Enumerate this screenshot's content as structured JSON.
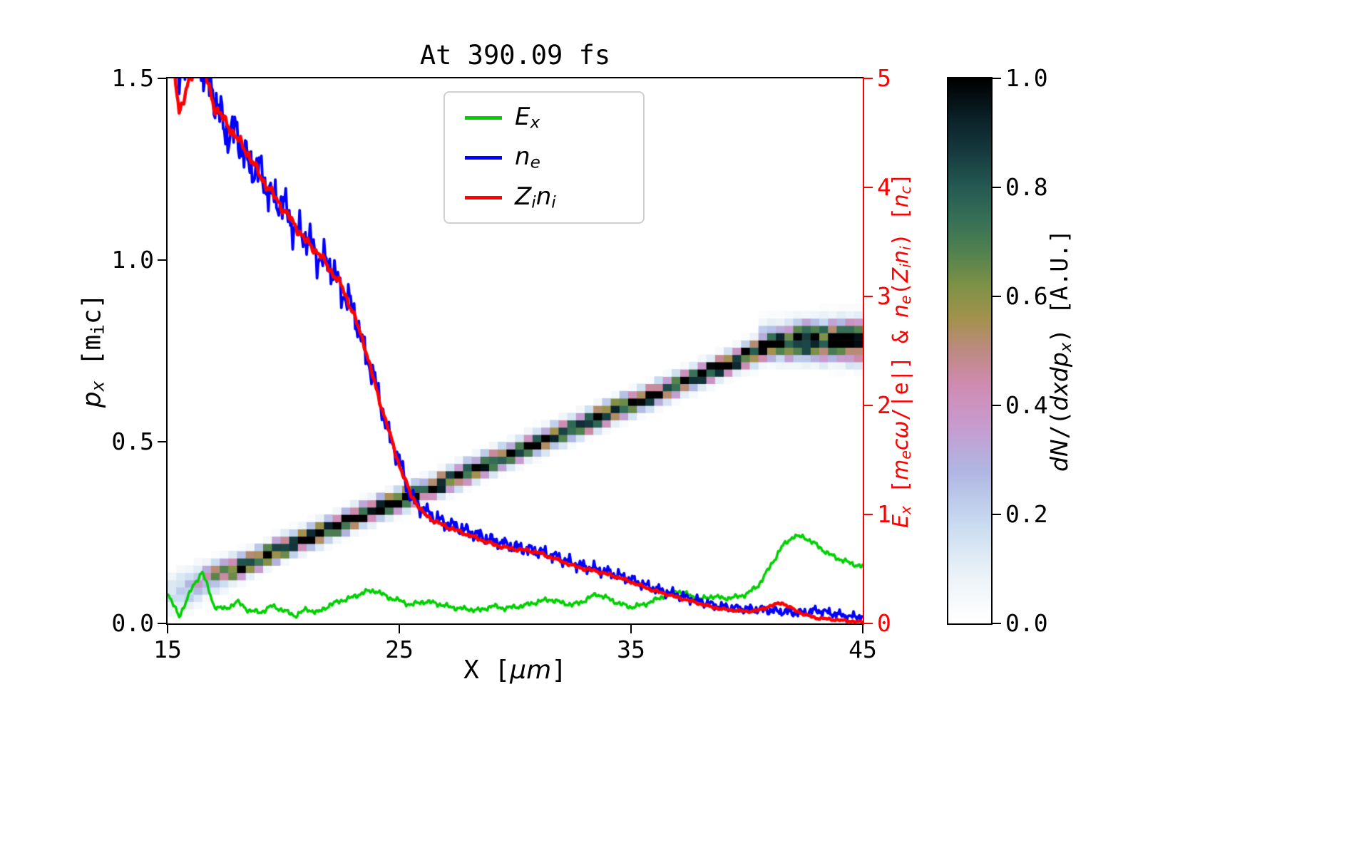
{
  "chart_data": {
    "type": "line+heatmap",
    "title": "At 390.09 fs",
    "x_axis": {
      "label": "X [μm]",
      "lim": [
        15,
        45
      ],
      "ticks": [
        15,
        25,
        35,
        45
      ],
      "tick_labels": [
        "15",
        "25",
        "35",
        "45"
      ]
    },
    "left_axis": {
      "label": "p_x [m_i c]",
      "lim": [
        0,
        1.5
      ],
      "ticks": [
        0,
        0.5,
        1.0,
        1.5
      ],
      "tick_labels": [
        "0.0",
        "0.5",
        "1.0",
        "1.5"
      ]
    },
    "right_axis": {
      "label": "E_x [m_e cω/|e|] & n_e(Z_i n_i) [n_c]",
      "lim": [
        0,
        5
      ],
      "ticks": [
        0,
        1,
        2,
        3,
        4,
        5
      ],
      "tick_labels": [
        "0",
        "1",
        "2",
        "3",
        "4",
        "5"
      ],
      "color": "#ff0000"
    },
    "grid": false,
    "legend_position": "upper center-left",
    "series": [
      {
        "name": "E_x",
        "axis": "right",
        "color": "#00d000",
        "lw": 3.5,
        "x0": 15,
        "dx": 0.5,
        "y": [
          0.28,
          0.06,
          0.3,
          0.48,
          0.16,
          0.13,
          0.2,
          0.12,
          0.1,
          0.16,
          0.12,
          0.07,
          0.13,
          0.1,
          0.17,
          0.21,
          0.24,
          0.29,
          0.3,
          0.24,
          0.21,
          0.17,
          0.2,
          0.19,
          0.16,
          0.14,
          0.13,
          0.12,
          0.16,
          0.14,
          0.15,
          0.17,
          0.2,
          0.22,
          0.19,
          0.17,
          0.21,
          0.27,
          0.23,
          0.18,
          0.15,
          0.17,
          0.21,
          0.26,
          0.3,
          0.26,
          0.22,
          0.25,
          0.23,
          0.24,
          0.27,
          0.35,
          0.52,
          0.7,
          0.8,
          0.79,
          0.72,
          0.64,
          0.59,
          0.55,
          0.52
        ],
        "noise": {
          "amp0": 0.018,
          "ampk": 0.0,
          "freqs": [
            9.1,
            23.7,
            41.3
          ],
          "phases": [
            0.3,
            1.7,
            3.1
          ]
        }
      },
      {
        "name": "n_e",
        "axis": "right",
        "color": "#0000ff",
        "lw": 3.8,
        "x0": 15,
        "dx": 0.5,
        "y": [
          5.7,
          5.0,
          5.3,
          5.1,
          4.85,
          4.5,
          4.5,
          4.2,
          4.15,
          3.9,
          3.85,
          3.6,
          3.55,
          3.35,
          3.3,
          3.05,
          2.9,
          2.5,
          2.2,
          1.75,
          1.5,
          1.15,
          1.05,
          0.97,
          0.92,
          0.88,
          0.84,
          0.8,
          0.76,
          0.73,
          0.7,
          0.68,
          0.66,
          0.63,
          0.59,
          0.55,
          0.52,
          0.5,
          0.47,
          0.44,
          0.4,
          0.36,
          0.32,
          0.29,
          0.26,
          0.23,
          0.2,
          0.17,
          0.15,
          0.14,
          0.13,
          0.13,
          0.12,
          0.11,
          0.1,
          0.1,
          0.12,
          0.1,
          0.08,
          0.06,
          0.07
        ],
        "noise": {
          "amp0": 0.03,
          "ampk": 0.03,
          "freqs": [
            11.3,
            29.7,
            53.9
          ],
          "phases": [
            0.7,
            2.1,
            4.2
          ]
        }
      },
      {
        "name": "Z_i n_i",
        "axis": "right",
        "color": "#ff0000",
        "lw": 4.5,
        "x0": 15,
        "dx": 0.5,
        "y": [
          5.6,
          4.7,
          5.0,
          5.15,
          4.75,
          4.6,
          4.45,
          4.3,
          4.1,
          3.95,
          3.8,
          3.65,
          3.5,
          3.4,
          3.25,
          3.1,
          2.85,
          2.55,
          2.15,
          1.8,
          1.45,
          1.18,
          1.02,
          0.94,
          0.89,
          0.85,
          0.81,
          0.77,
          0.73,
          0.7,
          0.68,
          0.67,
          0.65,
          0.61,
          0.57,
          0.53,
          0.5,
          0.48,
          0.45,
          0.42,
          0.38,
          0.34,
          0.3,
          0.27,
          0.24,
          0.21,
          0.18,
          0.15,
          0.13,
          0.12,
          0.11,
          0.12,
          0.16,
          0.19,
          0.13,
          0.08,
          0.05,
          0.04,
          0.03,
          0.02,
          0.01
        ],
        "noise": {
          "amp0": 0.008,
          "ampk": 0.007,
          "freqs": [
            8.7,
            19.3,
            37.1
          ],
          "phases": [
            1.1,
            2.9,
            0.4
          ]
        }
      }
    ],
    "heatmap": {
      "description": "electron phase-space density band dN/(dxdp_x), diagonal from (x≈17, p_x≈0.13) to (x≈41, p_x≈0.77), flat at p_x≈0.775 to x=45",
      "x0": 15,
      "dx": 1,
      "bins_x": 80,
      "bins_y": 75,
      "center": [
        0.075,
        0.1,
        0.13,
        0.155,
        0.18,
        0.21,
        0.235,
        0.26,
        0.29,
        0.315,
        0.34,
        0.365,
        0.39,
        0.42,
        0.445,
        0.47,
        0.5,
        0.525,
        0.55,
        0.58,
        0.605,
        0.63,
        0.655,
        0.685,
        0.71,
        0.74,
        0.765,
        0.775,
        0.775,
        0.775,
        0.775
      ],
      "peak": [
        0.15,
        0.3,
        0.5,
        0.85,
        1,
        1,
        1,
        1,
        1,
        1,
        1,
        1,
        1,
        1,
        1,
        1,
        1,
        1,
        1,
        1,
        1,
        1,
        1,
        1,
        1,
        1,
        1,
        0.95,
        0.9,
        0.85,
        0.8
      ],
      "sigma": [
        0.035,
        0.03,
        0.024,
        0.02,
        0.018,
        0.018,
        0.018,
        0.018,
        0.018,
        0.018,
        0.018,
        0.018,
        0.018,
        0.018,
        0.018,
        0.018,
        0.018,
        0.018,
        0.018,
        0.018,
        0.018,
        0.018,
        0.018,
        0.018,
        0.018,
        0.02,
        0.022,
        0.028,
        0.03,
        0.032,
        0.034
      ],
      "halo": {
        "x0": 40.5,
        "x1": 45,
        "c0": 0.8,
        "c1": 0.82,
        "peak": 0.13,
        "sigma": 0.025
      }
    },
    "colorbar": {
      "label": "dN/(dxdp_x) [A.U.]",
      "lim": [
        0,
        1
      ],
      "ticks": [
        0,
        0.2,
        0.4,
        0.6,
        0.8,
        1.0
      ],
      "tick_labels": [
        "0.0",
        "0.2",
        "0.4",
        "0.6",
        "0.8",
        "1.0"
      ],
      "colormap": "cubehelix_r",
      "colormap_stops": [
        [
          0,
          "#ffffff"
        ],
        [
          0.08,
          "#eef4f8"
        ],
        [
          0.18,
          "#c9dcf0"
        ],
        [
          0.28,
          "#b0b6e2"
        ],
        [
          0.36,
          "#c79cd0"
        ],
        [
          0.44,
          "#cf8bb0"
        ],
        [
          0.5,
          "#bd8a83"
        ],
        [
          0.56,
          "#a3914c"
        ],
        [
          0.62,
          "#7e9147"
        ],
        [
          0.68,
          "#53824f"
        ],
        [
          0.74,
          "#377057"
        ],
        [
          0.8,
          "#265a53"
        ],
        [
          0.87,
          "#15383d"
        ],
        [
          0.93,
          "#0a2027"
        ],
        [
          1,
          "#000000"
        ]
      ]
    }
  },
  "labels": {
    "xlabel": [
      {
        "t": "X [",
        "c": "m"
      },
      {
        "t": "μm",
        "c": "i"
      },
      {
        "t": "]",
        "c": "m"
      }
    ],
    "ylabel_left": [
      {
        "t": "p",
        "c": "i"
      },
      {
        "t": "x",
        "c": "is"
      },
      {
        "t": " [m",
        "c": "m"
      },
      {
        "t": "i",
        "c": "ms"
      },
      {
        "t": "c]",
        "c": "m"
      }
    ],
    "ylabel_right": [
      {
        "t": "E",
        "c": "i"
      },
      {
        "t": "x",
        "c": "is"
      },
      {
        "t": " [",
        "c": "m"
      },
      {
        "t": "m",
        "c": "i"
      },
      {
        "t": "e",
        "c": "is"
      },
      {
        "t": "c",
        "c": "i"
      },
      {
        "t": "ω",
        "c": "i"
      },
      {
        "t": "/|e|] & ",
        "c": "m"
      },
      {
        "t": "n",
        "c": "i"
      },
      {
        "t": "e",
        "c": "is"
      },
      {
        "t": "(",
        "c": "m"
      },
      {
        "t": "Z",
        "c": "i"
      },
      {
        "t": "i",
        "c": "is"
      },
      {
        "t": "n",
        "c": "i"
      },
      {
        "t": "i",
        "c": "is"
      },
      {
        "t": ") [",
        "c": "m"
      },
      {
        "t": "n",
        "c": "i"
      },
      {
        "t": "c",
        "c": "is"
      },
      {
        "t": "]",
        "c": "m"
      }
    ],
    "colorbar_label": [
      {
        "t": "d",
        "c": "i"
      },
      {
        "t": "N",
        "c": "i"
      },
      {
        "t": "/(",
        "c": "m"
      },
      {
        "t": "d",
        "c": "i"
      },
      {
        "t": "x",
        "c": "i"
      },
      {
        "t": "d",
        "c": "i"
      },
      {
        "t": "p",
        "c": "i"
      },
      {
        "t": "x",
        "c": "is"
      },
      {
        "t": ") [A.U.]",
        "c": "m"
      }
    ]
  },
  "legend": {
    "entries": [
      {
        "name": "E_x",
        "color": "#00d000",
        "parts": [
          {
            "t": "E",
            "c": "i"
          },
          {
            "t": "x",
            "c": "is"
          }
        ]
      },
      {
        "name": "n_e",
        "color": "#0000ff",
        "parts": [
          {
            "t": "n",
            "c": "i"
          },
          {
            "t": "e",
            "c": "is"
          }
        ]
      },
      {
        "name": "Z_i n_i",
        "color": "#ff0000",
        "parts": [
          {
            "t": "Z",
            "c": "i"
          },
          {
            "t": "i",
            "c": "is"
          },
          {
            "t": "n",
            "c": "i"
          },
          {
            "t": "i",
            "c": "is"
          }
        ]
      }
    ]
  }
}
